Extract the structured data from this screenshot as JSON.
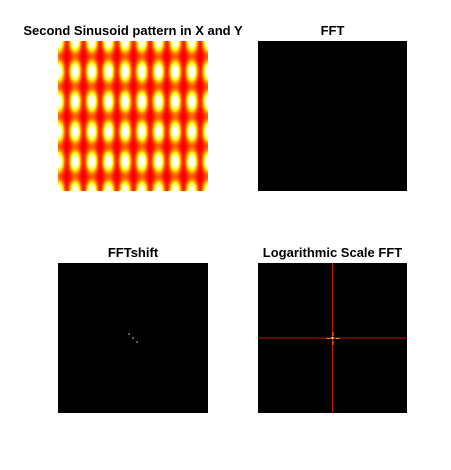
{
  "subplots": [
    {
      "title": "Second Sinusoid pattern in X and Y",
      "type": "heatmap",
      "colormap": "hot",
      "background": "#000000"
    },
    {
      "title": "FFT",
      "type": "heatmap",
      "colormap": "hot",
      "background": "#000000"
    },
    {
      "title": "FFTshift",
      "type": "heatmap",
      "colormap": "hot",
      "background": "#000000"
    },
    {
      "title": "Logarithmic Scale FFT",
      "type": "heatmap",
      "colormap": "hot",
      "background": "#000000"
    }
  ],
  "chart_data": [
    {
      "type": "heatmap",
      "title": "Second Sinusoid pattern in X and Y",
      "xlabel": "",
      "ylabel": "",
      "colormap": "hot",
      "pattern": "product of sinusoids in X and Y",
      "cycles_x": 9,
      "cycles_y": 5,
      "grid": false
    },
    {
      "type": "heatmap",
      "title": "FFT",
      "xlabel": "",
      "ylabel": "",
      "colormap": "hot",
      "grid": false
    },
    {
      "type": "heatmap",
      "title": "FFTshift",
      "xlabel": "",
      "ylabel": "",
      "colormap": "hot",
      "peaks": [
        {
          "dx": 0,
          "dy": 0
        },
        {
          "dx": -4,
          "dy": -4
        },
        {
          "dx": 4,
          "dy": 4
        }
      ],
      "grid": false
    },
    {
      "type": "heatmap",
      "title": "Logarithmic Scale FFT",
      "xlabel": "",
      "ylabel": "",
      "colormap": "hot",
      "center_lines": true,
      "line_color": "#cc1100",
      "grid": false
    }
  ]
}
